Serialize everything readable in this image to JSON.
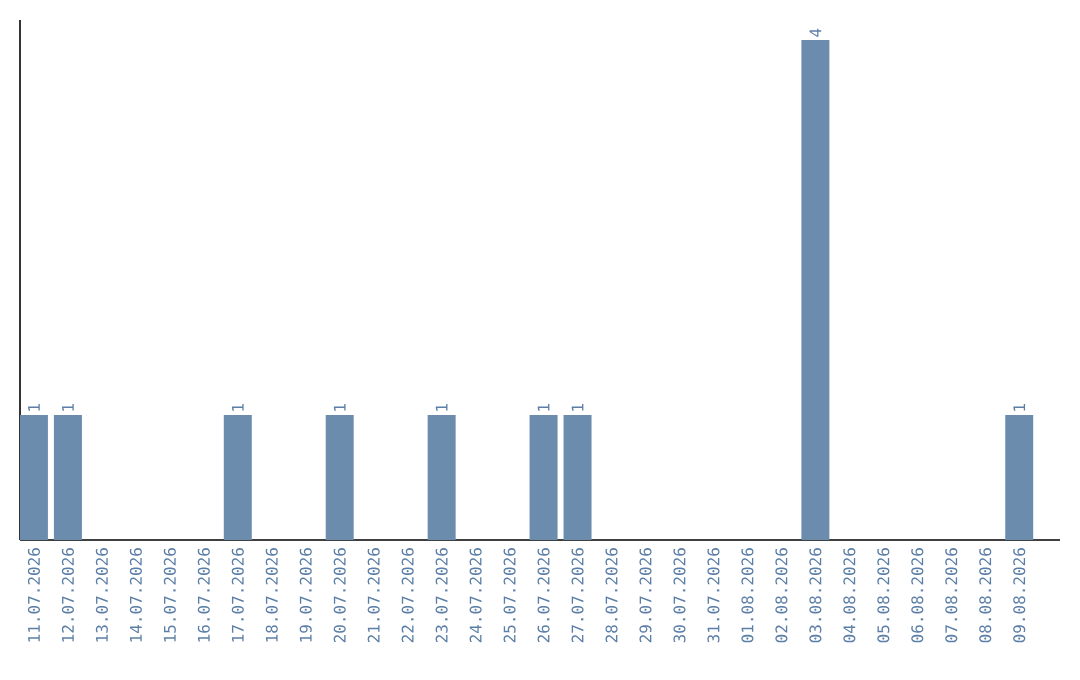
{
  "chart_data": {
    "type": "bar",
    "color": "#6b8cad",
    "categories": [
      "11.07.2026",
      "12.07.2026",
      "13.07.2026",
      "14.07.2026",
      "15.07.2026",
      "16.07.2026",
      "17.07.2026",
      "18.07.2026",
      "19.07.2026",
      "20.07.2026",
      "21.07.2026",
      "22.07.2026",
      "23.07.2026",
      "24.07.2026",
      "25.07.2026",
      "26.07.2026",
      "27.07.2026",
      "28.07.2026",
      "29.07.2026",
      "30.07.2026",
      "31.07.2026",
      "01.08.2026",
      "02.08.2026",
      "03.08.2026",
      "04.08.2026",
      "05.08.2026",
      "06.08.2026",
      "07.08.2026",
      "08.08.2026",
      "09.08.2026"
    ],
    "values": [
      1,
      1,
      0,
      0,
      0,
      0,
      1,
      0,
      0,
      1,
      0,
      0,
      1,
      0,
      0,
      1,
      1,
      0,
      0,
      0,
      0,
      0,
      0,
      4,
      0,
      0,
      0,
      0,
      0,
      1
    ],
    "value_labels": [
      "1",
      "1",
      null,
      null,
      null,
      null,
      "1",
      null,
      null,
      "1",
      null,
      null,
      "1",
      null,
      null,
      "1",
      "1",
      null,
      null,
      null,
      null,
      null,
      null,
      "4",
      null,
      null,
      null,
      null,
      null,
      "1"
    ],
    "tick_labels": "x",
    "grid": false
  }
}
